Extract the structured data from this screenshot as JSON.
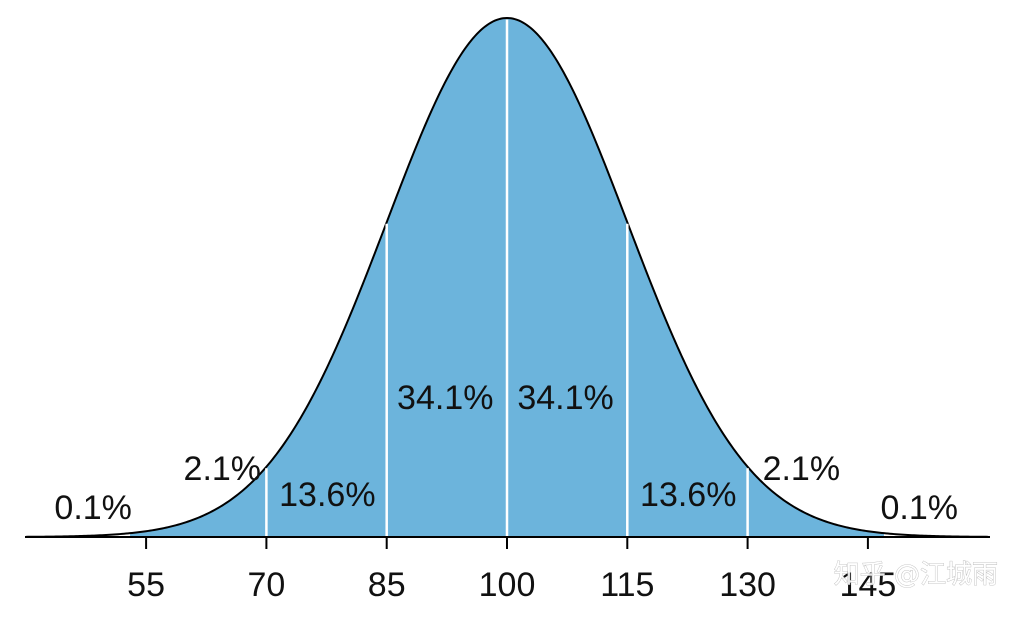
{
  "chart_data": {
    "type": "area",
    "distribution": "normal",
    "mean": 100,
    "sd": 15,
    "xlim": [
      40,
      160
    ],
    "ticks": [
      {
        "value": 55,
        "label": "55"
      },
      {
        "value": 70,
        "label": "70"
      },
      {
        "value": 85,
        "label": "85"
      },
      {
        "value": 100,
        "label": "100"
      },
      {
        "value": 115,
        "label": "115"
      },
      {
        "value": 130,
        "label": "130"
      },
      {
        "value": 145,
        "label": "145"
      }
    ],
    "segment_boundaries": [
      70,
      85,
      100,
      115,
      130
    ],
    "segment_labels": [
      {
        "text": "0.1%",
        "x": 48.4
      },
      {
        "text": "2.1%",
        "x": 64.5
      },
      {
        "text": "13.6%",
        "x": 77.6
      },
      {
        "text": "34.1%",
        "x": 92.3
      },
      {
        "text": "34.1%",
        "x": 107.3
      },
      {
        "text": "13.6%",
        "x": 122.6
      },
      {
        "text": "2.1%",
        "x": 136.7
      },
      {
        "text": "0.1%",
        "x": 151.4
      }
    ],
    "fill_color": "#6cb4dc",
    "outline_color": "#000000",
    "divider_color": "#ffffff",
    "title": "",
    "xlabel": "",
    "ylabel": ""
  },
  "watermark": {
    "text": "知乎 @江城雨"
  }
}
